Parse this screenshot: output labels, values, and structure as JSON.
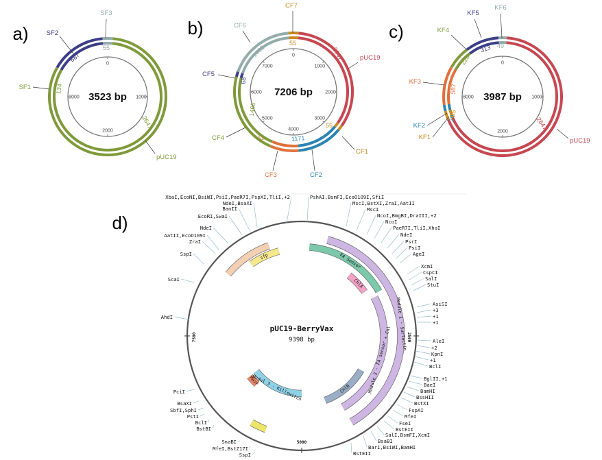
{
  "colors": {
    "olive": "#7f9a3a",
    "navy": "#3c3f87",
    "sage": "#92acaa",
    "red": "#c74750",
    "teal": "#2b84b3",
    "orange": "#e0703c",
    "mustard": "#c98a22",
    "gray": "#777777"
  },
  "panels": [
    {
      "letter": "a)",
      "size": "3523 bp",
      "ticks": [
        {
          "label": "0"
        },
        {
          "label": "1000"
        },
        {
          "label": "2000"
        },
        {
          "label": "3000"
        }
      ],
      "segments": [
        {
          "name": "SF3",
          "inner": "55",
          "color": "sage"
        },
        {
          "name": "pUC19",
          "inner": "2647",
          "color": "olive"
        },
        {
          "name": "SF1",
          "inner": "134",
          "color": "olive"
        },
        {
          "name": "SF2",
          "inner": "687",
          "color": "navy"
        }
      ]
    },
    {
      "letter": "b)",
      "size": "7206 bp",
      "ticks": [
        {
          "label": "0"
        },
        {
          "label": "1000"
        },
        {
          "label": "2000"
        },
        {
          "label": "3000"
        },
        {
          "label": "4000"
        },
        {
          "label": "5000"
        },
        {
          "label": "6000"
        },
        {
          "label": "7000"
        }
      ],
      "segments": [
        {
          "name": "CF7",
          "inner": "55",
          "color": "mustard"
        },
        {
          "name": "pUC19",
          "inner": "2647",
          "color": "red"
        },
        {
          "name": "CF1",
          "inner": "55",
          "color": "mustard"
        },
        {
          "name": "CF2",
          "inner": "1171",
          "color": "teal"
        },
        {
          "name": "CF3",
          "inner": "62",
          "color": "orange"
        },
        {
          "name": "CF4",
          "inner": "1466",
          "color": "olive"
        },
        {
          "name": "CF5",
          "inner": "68",
          "color": "navy"
        },
        {
          "name": "CF6",
          "inner": "1482",
          "color": "sage"
        }
      ]
    },
    {
      "letter": "c)",
      "size": "3987 bp",
      "ticks": [
        {
          "label": "0"
        },
        {
          "label": "1000"
        },
        {
          "label": "2000"
        },
        {
          "label": "3000"
        }
      ],
      "segments": [
        {
          "name": "KF6",
          "inner": "49",
          "color": "sage"
        },
        {
          "name": "pUC19",
          "inner": "2647",
          "color": "red"
        },
        {
          "name": "KF1",
          "inner": "55",
          "color": "mustard"
        },
        {
          "name": "KF2",
          "inner": "70",
          "color": "teal"
        },
        {
          "name": "KF3",
          "inner": "587",
          "color": "orange"
        },
        {
          "name": "KF4",
          "inner": "226",
          "color": "olive"
        },
        {
          "name": "KF5",
          "inner": "313",
          "color": "navy"
        }
      ]
    }
  ],
  "panel_d": {
    "letter": "d)",
    "title": "pUC19-BerryVax",
    "size": "9398 bp",
    "position_marks": [
      "2500",
      "5000",
      "7500"
    ],
    "features": [
      {
        "label": "Module 1 - Surfactin",
        "color": "#cdb6e2"
      },
      {
        "label": "FA Sensor",
        "color": "#7cc8aa"
      },
      {
        "label": "sfp",
        "color": "#f5e88c"
      },
      {
        "label": "",
        "color": "#f3cfb3"
      },
      {
        "label": "ChlA",
        "color": "#f3a3c6"
      },
      {
        "label": "Module 2 - FA sensor + Chl",
        "color": "#cdb6e2"
      },
      {
        "label": "ChlB",
        "color": "#9aaec7"
      },
      {
        "label": "MazF",
        "color": "#f08a6a"
      },
      {
        "label": "Modul 3 - Killswitch",
        "color": "#8fd2e6"
      },
      {
        "label": "",
        "color": "#ede56a"
      }
    ],
    "sites_left": [
      {
        "text": "XbaI,EcoNI,BsiWI,PsiI,PaeR7I,PspXI,TliI,+2",
        "color": "#4f7fd0"
      },
      {
        "text": "NdeI,BsaXI",
        "color": "#d0704a"
      },
      {
        "text": "BanII",
        "color": "#111111"
      },
      {
        "text": "EcoRI,SwaI",
        "color": "#d0704a"
      },
      {
        "text": "NdeI",
        "color": "#d0704a"
      },
      {
        "text": "AatII,EcoO109I",
        "color": "#111111"
      },
      {
        "text": "ZraI",
        "color": "#111111"
      },
      {
        "text": "SspI",
        "color": "#111111"
      },
      {
        "text": "ScaI",
        "color": "#111111"
      },
      {
        "text": "AhdI",
        "color": "#111111"
      },
      {
        "text": "PciI",
        "color": "#111111"
      },
      {
        "text": "BsaXI",
        "color": "#111111"
      },
      {
        "text": "SbfI,SphI",
        "color": "#111111"
      },
      {
        "text": "PstI",
        "color": "#8ab83a"
      },
      {
        "text": "BclI",
        "color": "#111111"
      },
      {
        "text": "BstBI",
        "color": "#111111"
      },
      {
        "text": "SnaBI",
        "color": "#111111"
      },
      {
        "text": "MfeI,BstZ17I",
        "color": "#111111"
      },
      {
        "text": "SspI",
        "color": "#111111"
      }
    ],
    "sites_right": [
      {
        "text": "PshAI,BsmFI,EcoO109I,SfiI",
        "color": "#111111"
      },
      {
        "text": "MscI,BstXI,ZraI,AatII",
        "color": "#111111"
      },
      {
        "text": "MscI",
        "color": "#111111"
      },
      {
        "text": "NcoI,BmgBI,DraIII,+2",
        "color": "#111111"
      },
      {
        "text": "NcoI",
        "color": "#111111"
      },
      {
        "text": "PaeR7I,TliI,XhoI",
        "color": "#111111"
      },
      {
        "text": "NdeI",
        "color": "#d0704a"
      },
      {
        "text": "PsrI",
        "color": "#111111"
      },
      {
        "text": "PsiI",
        "color": "#111111"
      },
      {
        "text": "AgeI",
        "color": "#111111"
      },
      {
        "text": "XcmI",
        "color": "#111111"
      },
      {
        "text": "CspCI",
        "color": "#111111"
      },
      {
        "text": "SalI",
        "color": "#111111"
      },
      {
        "text": "StuI",
        "color": "#111111"
      },
      {
        "text": "AsiSI",
        "color": "#111111"
      },
      {
        "text": "+3",
        "color": "#111111"
      },
      {
        "text": "+1",
        "color": "#111111"
      },
      {
        "text": "+1",
        "color": "#111111"
      },
      {
        "text": "AleI",
        "color": "#111111"
      },
      {
        "text": "+2",
        "color": "#111111"
      },
      {
        "text": "KpnI",
        "color": "#111111"
      },
      {
        "text": "+1",
        "color": "#111111"
      },
      {
        "text": "BclI",
        "color": "#111111"
      },
      {
        "text": "BglII,+1",
        "color": "#111111"
      },
      {
        "text": "BaeI",
        "color": "#111111"
      },
      {
        "text": "BamHI",
        "color": "#111111"
      },
      {
        "text": "BssHII",
        "color": "#111111"
      },
      {
        "text": "BstXI",
        "color": "#111111"
      },
      {
        "text": "FspAI",
        "color": "#111111"
      },
      {
        "text": "MfeI",
        "color": "#111111"
      },
      {
        "text": "FseI",
        "color": "#111111"
      },
      {
        "text": "BstEII",
        "color": "#111111"
      },
      {
        "text": "SalI,BsmFI,XcmI",
        "color": "#111111"
      },
      {
        "text": "BsaBI",
        "color": "#111111"
      },
      {
        "text": "BarI,BsiWI,BamHI",
        "color": "#111111"
      },
      {
        "text": "BstEII",
        "color": "#111111"
      }
    ]
  }
}
